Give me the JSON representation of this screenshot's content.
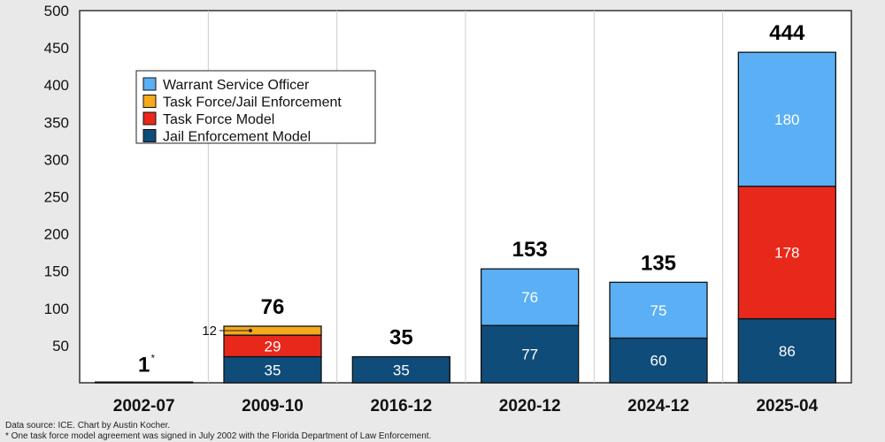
{
  "chart_data": {
    "type": "bar",
    "stacked": true,
    "categories": [
      "2002-07",
      "2009-10",
      "2016-12",
      "2020-12",
      "2024-12",
      "2025-04"
    ],
    "series": [
      {
        "name": "Jail Enforcement Model",
        "color": "#0f4c7a",
        "values": [
          0,
          35,
          35,
          77,
          60,
          86
        ]
      },
      {
        "name": "Task Force Model",
        "color": "#e8281b",
        "values": [
          1,
          29,
          0,
          0,
          0,
          178
        ]
      },
      {
        "name": "Task Force/Jail Enforcement",
        "color": "#f5a91c",
        "values": [
          0,
          12,
          0,
          0,
          0,
          0
        ]
      },
      {
        "name": "Warrant Service Officer",
        "color": "#5aaff5",
        "values": [
          0,
          0,
          0,
          76,
          75,
          180
        ]
      }
    ],
    "segment_labels": [
      [
        null,
        "35",
        "35",
        "77",
        "60",
        "86"
      ],
      [
        null,
        "29",
        null,
        null,
        null,
        "178"
      ],
      [
        null,
        null,
        null,
        null,
        null,
        null
      ],
      [
        null,
        null,
        null,
        "76",
        "75",
        "180"
      ]
    ],
    "callout_labels": [
      null,
      "12",
      null,
      null,
      null,
      null
    ],
    "totals": [
      "1",
      "76",
      "35",
      "153",
      "135",
      "444"
    ],
    "asterisk": "*",
    "ylim": [
      0,
      500
    ],
    "yticks": [
      "50",
      "100",
      "150",
      "200",
      "250",
      "300",
      "350",
      "400",
      "450",
      "500"
    ],
    "legend_order": [
      "Warrant Service Officer",
      "Task Force/Jail Enforcement",
      "Task Force Model",
      "Jail Enforcement Model"
    ],
    "legend_position": "top-left",
    "grid": "vertical-between-categories"
  },
  "footnotes": [
    "Data source: ICE. Chart by Austin Kocher.",
    "* One task force model agreement was signed in July 2002 with the Florida Department of Law Enforcement."
  ]
}
